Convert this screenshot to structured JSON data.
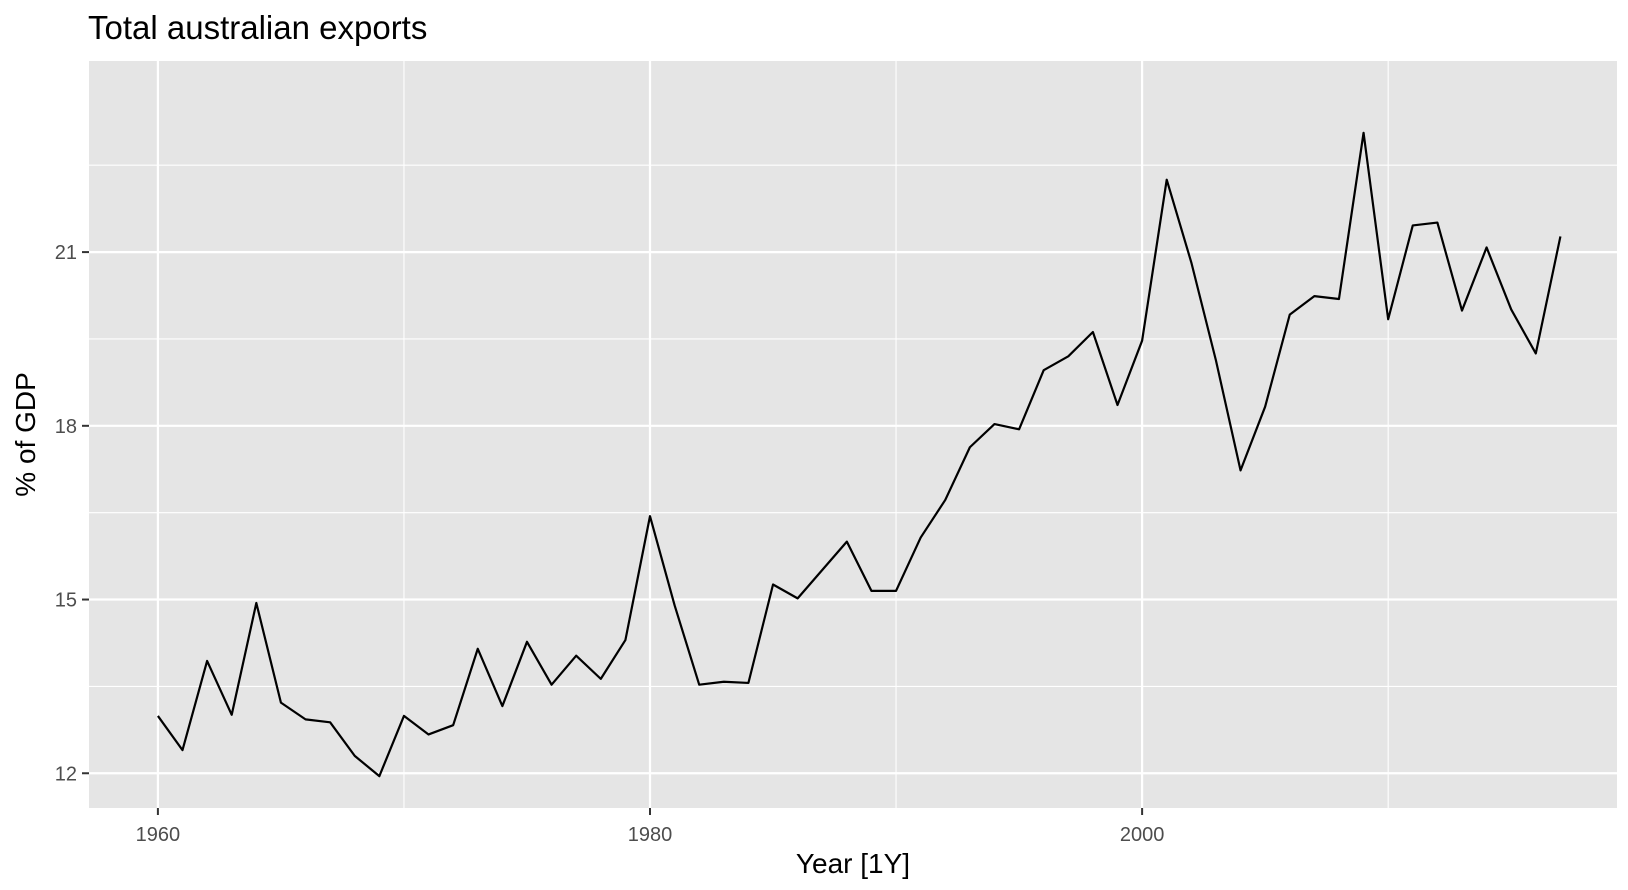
{
  "chart_data": {
    "type": "line",
    "title": "Total australian exports",
    "xlabel": "Year [1Y]",
    "ylabel": "% of GDP",
    "x_ticks": [
      1960,
      1980,
      2000
    ],
    "y_ticks": [
      12,
      15,
      18,
      21
    ],
    "xlim": [
      1957.2,
      2019.3
    ],
    "ylim": [
      11.4,
      24.3
    ],
    "grid": true,
    "legend": "none",
    "panel_background": "#e5e5e5",
    "line_color": "#000000",
    "series": [
      {
        "x": [
          1960,
          1961,
          1962,
          1963,
          1964,
          1965,
          1966,
          1967,
          1968,
          1969,
          1970,
          1971,
          1972,
          1973,
          1974,
          1975,
          1976,
          1977,
          1978,
          1979,
          1980,
          1981,
          1982,
          1983,
          1984,
          1985,
          1986,
          1987,
          1988,
          1989,
          1990,
          1991,
          1992,
          1993,
          1994,
          1995,
          1996,
          1997,
          1998,
          1999,
          2000,
          2001,
          2002,
          2003,
          2004,
          2005,
          2006,
          2007,
          2008,
          2009,
          2010,
          2011,
          2012,
          2013,
          2014,
          2015,
          2016,
          2017
        ],
        "values": [
          12.99,
          12.4,
          13.94,
          13.01,
          14.94,
          13.22,
          12.93,
          12.88,
          12.3,
          11.95,
          12.99,
          12.67,
          12.83,
          14.15,
          13.16,
          14.27,
          13.53,
          14.03,
          13.63,
          14.3,
          16.44,
          14.9,
          13.53,
          13.58,
          13.56,
          15.26,
          15.02,
          15.51,
          16.0,
          15.15,
          15.15,
          16.07,
          16.72,
          17.63,
          18.03,
          17.94,
          18.96,
          19.2,
          19.62,
          18.36,
          19.47,
          22.25,
          20.82,
          19.13,
          17.23,
          18.33,
          19.92,
          20.24,
          20.19,
          23.06,
          19.84,
          21.46,
          21.51,
          19.99,
          21.08,
          20.01,
          19.25,
          21.27
        ]
      }
    ]
  }
}
